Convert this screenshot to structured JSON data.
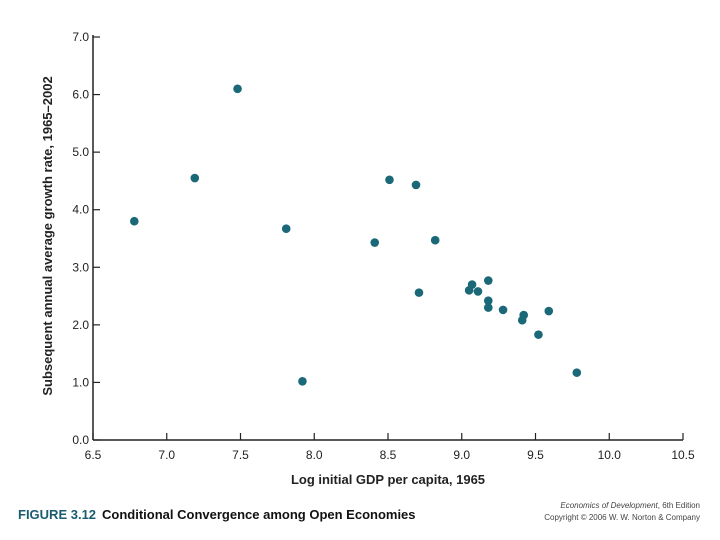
{
  "figure": {
    "number": "FIGURE 3.12",
    "caption": "Conditional Convergence among Open Economies"
  },
  "credit": {
    "book": "Economics of Development",
    "edition": ", 6th Edition",
    "copyright": "Copyright © 2006 W. W. Norton & Company"
  },
  "colors": {
    "marker": "#1a6878",
    "axis": "#222222"
  },
  "chart_data": {
    "type": "scatter",
    "title": "",
    "xlabel": "Log initial GDP per capita, 1965",
    "ylabel": "Subsequent annual average growth rate, 1965–2002",
    "xlim": [
      6.5,
      10.5
    ],
    "ylim": [
      0.0,
      7.0
    ],
    "xticks": [
      "6.5",
      "7.0",
      "7.5",
      "8.0",
      "8.5",
      "9.0",
      "9.5",
      "10.0",
      "10.5"
    ],
    "yticks": [
      "0.0",
      "1.0",
      "2.0",
      "3.0",
      "4.0",
      "5.0",
      "6.0",
      "7.0"
    ],
    "grid": false,
    "points": [
      {
        "x": 6.78,
        "y": 3.8
      },
      {
        "x": 7.19,
        "y": 4.55
      },
      {
        "x": 7.48,
        "y": 6.1
      },
      {
        "x": 7.81,
        "y": 3.67
      },
      {
        "x": 7.92,
        "y": 1.02
      },
      {
        "x": 8.41,
        "y": 3.43
      },
      {
        "x": 8.51,
        "y": 4.52
      },
      {
        "x": 8.69,
        "y": 4.43
      },
      {
        "x": 8.71,
        "y": 2.56
      },
      {
        "x": 8.82,
        "y": 3.47
      },
      {
        "x": 9.05,
        "y": 2.6
      },
      {
        "x": 9.07,
        "y": 2.7
      },
      {
        "x": 9.11,
        "y": 2.58
      },
      {
        "x": 9.18,
        "y": 2.77
      },
      {
        "x": 9.18,
        "y": 2.42
      },
      {
        "x": 9.18,
        "y": 2.3
      },
      {
        "x": 9.28,
        "y": 2.26
      },
      {
        "x": 9.41,
        "y": 2.08
      },
      {
        "x": 9.42,
        "y": 2.17
      },
      {
        "x": 9.52,
        "y": 1.83
      },
      {
        "x": 9.59,
        "y": 2.24
      },
      {
        "x": 9.78,
        "y": 1.17
      }
    ]
  }
}
